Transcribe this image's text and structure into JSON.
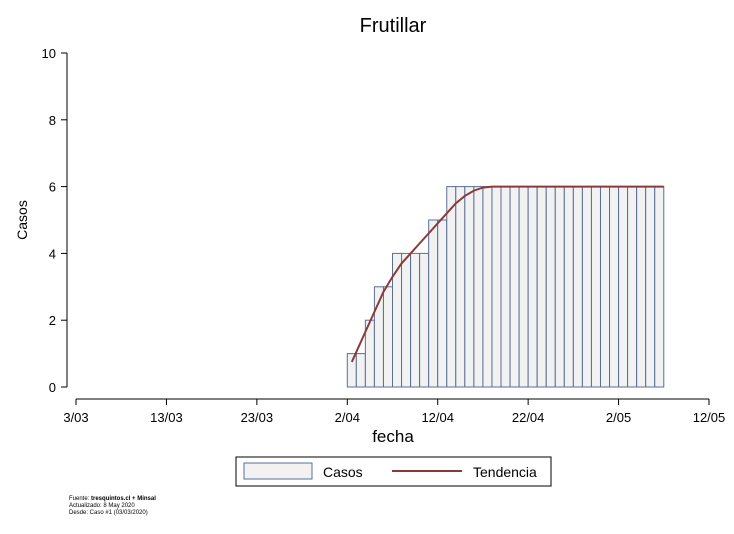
{
  "chart_data": {
    "type": "bar",
    "title": "Frutillar",
    "xlabel": "fecha",
    "ylabel": "Casos",
    "ylim": [
      0,
      10
    ],
    "yticks": [
      "0",
      "2",
      "4",
      "6",
      "8",
      "10"
    ],
    "xtick_labels": [
      "3/03",
      "13/03",
      "23/03",
      "2/04",
      "12/04",
      "22/04",
      "2/05",
      "12/05"
    ],
    "x_start_day": 0,
    "x_end_day": 70,
    "bars": {
      "start_day": 30,
      "values": [
        1,
        1,
        2,
        3,
        3,
        4,
        4,
        4,
        4,
        5,
        5,
        6,
        6,
        6,
        6,
        6,
        6,
        6,
        6,
        6,
        6,
        6,
        6,
        6,
        6,
        6,
        6,
        6,
        6,
        6,
        6,
        6,
        6,
        6,
        6
      ]
    },
    "trend": {
      "points": [
        [
          30.5,
          0.75
        ],
        [
          31,
          1.05
        ],
        [
          32,
          1.65
        ],
        [
          33,
          2.25
        ],
        [
          34,
          2.85
        ],
        [
          35,
          3.3
        ],
        [
          36,
          3.7
        ],
        [
          37,
          4.0
        ],
        [
          38,
          4.3
        ],
        [
          39,
          4.6
        ],
        [
          40,
          4.9
        ],
        [
          41,
          5.2
        ],
        [
          42,
          5.5
        ],
        [
          43,
          5.72
        ],
        [
          44,
          5.88
        ],
        [
          45,
          5.97
        ],
        [
          46,
          6.0
        ],
        [
          70,
          6.0
        ]
      ],
      "end_day": 65
    },
    "legend": {
      "placement": "bottom",
      "items": [
        "Casos",
        "Tendencia"
      ]
    },
    "colors": {
      "bar_fill": "#f2f2f2",
      "bar_edge": "#5a6f94",
      "trend": "#8b3a3a",
      "axis": "#000000"
    }
  },
  "footer": {
    "line1_prefix": "Fuente: ",
    "line1_bold": "tresquintos.cl + Minsal",
    "line2": "Actualizado: 8 May 2020",
    "line3": "Desde: Caso #1  (03/03/2020)"
  }
}
